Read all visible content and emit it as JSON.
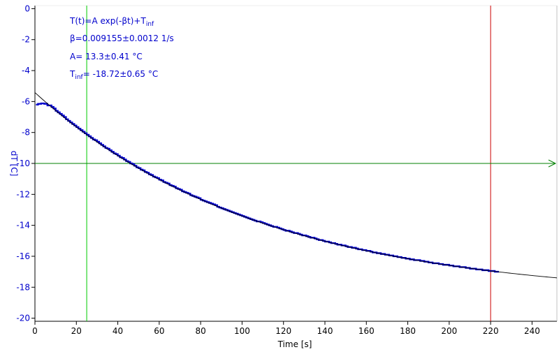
{
  "chart_data": {
    "type": "scatter",
    "xlabel": "Time [s]",
    "ylabel": "dT [C]",
    "xlim": [
      0,
      252
    ],
    "ylim": [
      -20.2,
      0.2
    ],
    "xticks": [
      0,
      20,
      40,
      60,
      80,
      100,
      120,
      140,
      160,
      180,
      200,
      220,
      240
    ],
    "yticks": [
      0,
      -2,
      -4,
      -6,
      -8,
      -10,
      -12,
      -14,
      -16,
      -18,
      -20
    ],
    "grid": false,
    "annotations": {
      "line1_main": "T(t)=A exp(-βt)+T",
      "line1_sub": "inf",
      "line2": "β=0.009155±0.0012 1/s",
      "line3": "A= 13.3±0.41 °C",
      "line4_main": "T",
      "line4_sub": "inf",
      "line4_rest": "= -18.72±0.65 °C"
    },
    "fit": {
      "A": 13.3,
      "beta": 0.009155,
      "Tinf": -18.72,
      "x_start": 0,
      "x_end": 252
    },
    "data_series": {
      "x_start": 0.5,
      "x_end": 224,
      "x_step": 1,
      "initial_values": [
        [
          0.5,
          -6.2
        ],
        [
          1.5,
          -6.15
        ],
        [
          3,
          -6.12
        ],
        [
          4.5,
          -6.15
        ],
        [
          6,
          -6.25
        ]
      ]
    },
    "markers": {
      "green_vertical_x": 25,
      "red_vertical_x": 220,
      "green_horizontal_y": -10
    },
    "colors": {
      "data": "#0000cc",
      "fit": "#000000",
      "green_line": "#00cc00",
      "red_line": "#cc0000",
      "horizontal_line": "#008000",
      "axis": "#000000"
    }
  }
}
